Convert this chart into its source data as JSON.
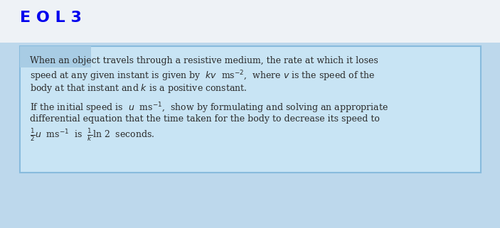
{
  "title": "E O L 3",
  "title_color": "#0000EE",
  "title_fontsize": 16,
  "title_bg": "#E8EEF4",
  "box_bg": "#C8E4F4",
  "fig_bg": "#BDD8EC",
  "box_border_color": "#88BBDD",
  "inner_rect_color": "#A8CCE4",
  "font_size": 9.0,
  "text_color": "#2A2A2A",
  "line1": "When an object travels through a resistive medium, the rate at which it loses",
  "line2": "speed at any given instant is given by  $kv$  ms$^{-2}$,  where $v$ is the speed of the",
  "line3": "body at that instant and $k$ is a positive constant.",
  "line4": "If the initial speed is  $u$  ms$^{-1}$,  show by formulating and solving an appropriate",
  "line5": "differential equation that the time taken for the body to decrease its speed to",
  "line6": "$\\frac{1}{2}u$  ms$^{-1}$  is  $\\frac{1}{k}$ln 2  seconds."
}
